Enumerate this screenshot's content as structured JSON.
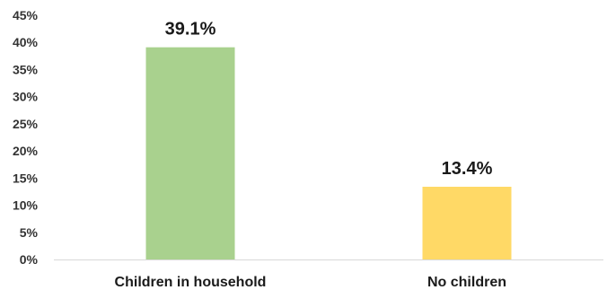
{
  "chart_data": {
    "type": "bar",
    "categories": [
      "Children in household",
      "No children"
    ],
    "values": [
      39.1,
      13.4
    ],
    "data_labels": [
      "39.1%",
      "13.4%"
    ],
    "colors": [
      "#a9d18e",
      "#ffd966"
    ],
    "ylim": [
      0,
      45
    ],
    "y_ticks": [
      0,
      5,
      10,
      15,
      20,
      25,
      30,
      35,
      40,
      45
    ],
    "y_tick_labels": [
      "0%",
      "5%",
      "10%",
      "15%",
      "20%",
      "25%",
      "30%",
      "35%",
      "40%",
      "45%"
    ],
    "title": "",
    "xlabel": "",
    "ylabel": "",
    "grid": false,
    "axis_color": "#d9d9d9"
  }
}
